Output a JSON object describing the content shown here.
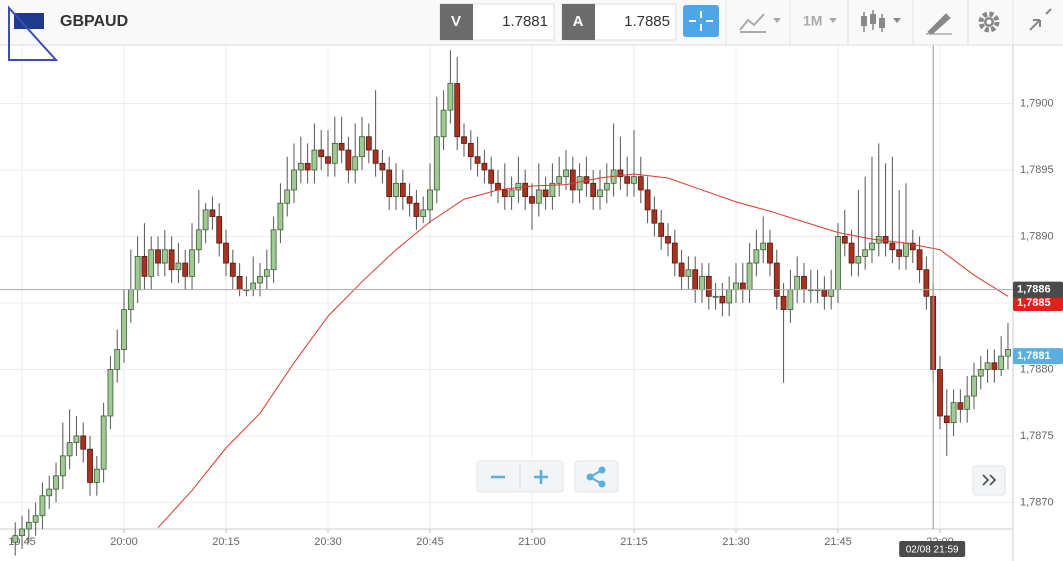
{
  "toolbar": {
    "symbol": "GBPAUD",
    "bid_label": "V",
    "bid": "1.7881",
    "ask_label": "A",
    "ask": "1.7885",
    "timeframe": "1M"
  },
  "chart_data": {
    "type": "candlestick",
    "xlim": [
      1181.76,
      1330.74
    ],
    "ylim": [
      1.7868,
      1.79044
    ],
    "xticks": [
      {
        "value": 1185,
        "label": "19:45"
      },
      {
        "value": 1200,
        "label": "20:00"
      },
      {
        "value": 1215,
        "label": "20:15"
      },
      {
        "value": 1230,
        "label": "20:30"
      },
      {
        "value": 1245,
        "label": "20:45"
      },
      {
        "value": 1260,
        "label": "21:00"
      },
      {
        "value": 1275,
        "label": "21:15"
      },
      {
        "value": 1290,
        "label": "21:30"
      },
      {
        "value": 1305,
        "label": "21:45"
      },
      {
        "value": 1320,
        "label": "22:00"
      }
    ],
    "yticks": [
      {
        "value": 1.787,
        "label": "1,7870"
      },
      {
        "value": 1.7875,
        "label": "1,7875"
      },
      {
        "value": 1.788,
        "label": "1,7880"
      },
      {
        "value": 1.7885,
        "label": "1,7885"
      },
      {
        "value": 1.789,
        "label": "1,7890"
      },
      {
        "value": 1.7895,
        "label": "1,7895"
      },
      {
        "value": 1.79,
        "label": "1,7900"
      }
    ],
    "grid": true,
    "up_color": "#9fca94",
    "up_stroke": "#3e5a37",
    "down_color": "#a8321f",
    "down_stroke": "#4f1a10",
    "wick_color": "#555555",
    "x": [
      1184,
      1185,
      1186,
      1187,
      1188,
      1189,
      1190,
      1191,
      1192,
      1193,
      1194,
      1195,
      1196,
      1197,
      1198,
      1199,
      1200,
      1201,
      1202,
      1203,
      1204,
      1205,
      1206,
      1207,
      1208,
      1209,
      1210,
      1211,
      1212,
      1213,
      1214,
      1215,
      1216,
      1217,
      1218,
      1219,
      1220,
      1221,
      1222,
      1223,
      1224,
      1225,
      1226,
      1227,
      1228,
      1229,
      1230,
      1231,
      1232,
      1233,
      1234,
      1235,
      1236,
      1237,
      1238,
      1239,
      1240,
      1241,
      1242,
      1243,
      1244,
      1245,
      1246,
      1247,
      1248,
      1249,
      1250,
      1251,
      1252,
      1253,
      1254,
      1255,
      1256,
      1257,
      1258,
      1259,
      1260,
      1261,
      1262,
      1263,
      1264,
      1265,
      1266,
      1267,
      1268,
      1269,
      1270,
      1271,
      1272,
      1273,
      1274,
      1275,
      1276,
      1277,
      1278,
      1279,
      1280,
      1281,
      1282,
      1283,
      1284,
      1285,
      1286,
      1287,
      1288,
      1289,
      1290,
      1291,
      1292,
      1293,
      1294,
      1295,
      1296,
      1297,
      1298,
      1299,
      1300,
      1301,
      1302,
      1303,
      1304,
      1305,
      1306,
      1307,
      1308,
      1309,
      1310,
      1311,
      1312,
      1313,
      1314,
      1315,
      1316,
      1317,
      1318,
      1319,
      1320,
      1321,
      1322,
      1323,
      1324,
      1325,
      1326,
      1327,
      1328,
      1329,
      1330
    ],
    "open": [
      1.7867,
      1.78675,
      1.7868,
      1.78685,
      1.7869,
      1.78705,
      1.7871,
      1.7872,
      1.78735,
      1.78745,
      1.7875,
      1.7874,
      1.78715,
      1.78725,
      1.78765,
      1.788,
      1.78815,
      1.78845,
      1.7886,
      1.78885,
      1.7887,
      1.7889,
      1.7888,
      1.7889,
      1.78875,
      1.7888,
      1.7887,
      1.7889,
      1.78905,
      1.7892,
      1.78915,
      1.78895,
      1.7888,
      1.7887,
      1.7886,
      1.7886,
      1.78865,
      1.7887,
      1.78875,
      1.78905,
      1.78925,
      1.78935,
      1.7895,
      1.78955,
      1.7895,
      1.78965,
      1.7896,
      1.78955,
      1.7897,
      1.78965,
      1.7895,
      1.7896,
      1.78975,
      1.78965,
      1.78955,
      1.7895,
      1.7893,
      1.7894,
      1.7893,
      1.78925,
      1.78915,
      1.7892,
      1.78935,
      1.78975,
      1.78995,
      1.79015,
      1.78975,
      1.7897,
      1.7896,
      1.78955,
      1.7895,
      1.7894,
      1.78935,
      1.7893,
      1.78935,
      1.7894,
      1.7893,
      1.78925,
      1.78935,
      1.7893,
      1.7894,
      1.78945,
      1.7895,
      1.78935,
      1.78945,
      1.7894,
      1.7893,
      1.78935,
      1.7894,
      1.7895,
      1.78945,
      1.7894,
      1.78945,
      1.78935,
      1.7892,
      1.7891,
      1.789,
      1.78895,
      1.7888,
      1.7887,
      1.78875,
      1.7886,
      1.7887,
      1.78855,
      1.78855,
      1.7885,
      1.7886,
      1.78865,
      1.7886,
      1.7888,
      1.7889,
      1.78895,
      1.7888,
      1.78855,
      1.78845,
      1.7886,
      1.7887,
      1.7886,
      1.7886,
      1.7886,
      1.78855,
      1.7886,
      1.789,
      1.78895,
      1.7888,
      1.78885,
      1.7889,
      1.78895,
      1.789,
      1.78895,
      1.7889,
      1.78885,
      1.78895,
      1.7889,
      1.78875,
      1.78855,
      1.788,
      1.78765,
      1.7876,
      1.78775,
      1.7877,
      1.7878,
      1.78795,
      1.788,
      1.78805,
      1.788,
      1.7881
    ],
    "high": [
      1.78685,
      1.7869,
      1.78695,
      1.787,
      1.78715,
      1.7872,
      1.7873,
      1.7876,
      1.7877,
      1.78765,
      1.7876,
      1.7875,
      1.78735,
      1.78775,
      1.7881,
      1.7883,
      1.7886,
      1.7889,
      1.789,
      1.7891,
      1.789,
      1.789,
      1.78905,
      1.789,
      1.78895,
      1.7889,
      1.7891,
      1.78935,
      1.78925,
      1.7893,
      1.78925,
      1.78905,
      1.7889,
      1.7888,
      1.7887,
      1.78885,
      1.7888,
      1.7889,
      1.78915,
      1.7894,
      1.7896,
      1.7897,
      1.78975,
      1.7897,
      1.78985,
      1.7898,
      1.7898,
      1.7899,
      1.7899,
      1.78975,
      1.78985,
      1.7899,
      1.78985,
      1.7901,
      1.78965,
      1.7896,
      1.78955,
      1.7895,
      1.7894,
      1.78935,
      1.7893,
      1.78955,
      1.79005,
      1.7901,
      1.7904,
      1.79035,
      1.78985,
      1.7898,
      1.78975,
      1.78965,
      1.7896,
      1.7895,
      1.78955,
      1.78945,
      1.7896,
      1.7895,
      1.7894,
      1.78955,
      1.78945,
      1.78955,
      1.7896,
      1.78965,
      1.7896,
      1.78955,
      1.7896,
      1.7895,
      1.7895,
      1.78955,
      1.78985,
      1.78975,
      1.7896,
      1.7898,
      1.7896,
      1.78945,
      1.7893,
      1.7892,
      1.7891,
      1.78905,
      1.7889,
      1.78885,
      1.78885,
      1.7888,
      1.7888,
      1.78865,
      1.78865,
      1.7887,
      1.7888,
      1.7888,
      1.78895,
      1.78905,
      1.78915,
      1.78905,
      1.7889,
      1.78865,
      1.78875,
      1.78885,
      1.7888,
      1.78875,
      1.78875,
      1.7887,
      1.78875,
      1.7891,
      1.7892,
      1.78905,
      1.78935,
      1.78945,
      1.7896,
      1.7897,
      1.78955,
      1.7896,
      1.78935,
      1.7894,
      1.78905,
      1.789,
      1.78885,
      1.78865,
      1.7881,
      1.78785,
      1.78785,
      1.78785,
      1.78795,
      1.78805,
      1.7881,
      1.78815,
      1.78815,
      1.78825,
      1.78835
    ],
    "low": [
      1.7866,
      1.78665,
      1.7867,
      1.78675,
      1.7868,
      1.78695,
      1.787,
      1.7871,
      1.78725,
      1.78735,
      1.7873,
      1.78705,
      1.78705,
      1.78715,
      1.78755,
      1.7879,
      1.78805,
      1.78835,
      1.7885,
      1.7886,
      1.7886,
      1.7887,
      1.7887,
      1.78865,
      1.78865,
      1.7886,
      1.7886,
      1.7888,
      1.78895,
      1.78905,
      1.78885,
      1.7887,
      1.7886,
      1.78855,
      1.78855,
      1.78855,
      1.78855,
      1.7886,
      1.78865,
      1.78895,
      1.78915,
      1.78925,
      1.7894,
      1.7894,
      1.7894,
      1.7895,
      1.78945,
      1.78945,
      1.78955,
      1.7894,
      1.7894,
      1.7895,
      1.78955,
      1.78945,
      1.7894,
      1.7892,
      1.7892,
      1.7892,
      1.78915,
      1.78905,
      1.7891,
      1.7891,
      1.78925,
      1.78965,
      1.78985,
      1.78965,
      1.7896,
      1.7895,
      1.78945,
      1.7894,
      1.7893,
      1.78925,
      1.7892,
      1.7892,
      1.78925,
      1.7892,
      1.78905,
      1.78915,
      1.7892,
      1.7892,
      1.7893,
      1.78935,
      1.78925,
      1.78925,
      1.7893,
      1.7892,
      1.7892,
      1.78925,
      1.7893,
      1.78935,
      1.7893,
      1.7893,
      1.78925,
      1.7891,
      1.789,
      1.7889,
      1.78885,
      1.7887,
      1.7886,
      1.7886,
      1.7885,
      1.7885,
      1.78845,
      1.78845,
      1.7884,
      1.7884,
      1.7885,
      1.7885,
      1.7885,
      1.7887,
      1.7888,
      1.7887,
      1.78845,
      1.7879,
      1.78835,
      1.7885,
      1.7885,
      1.7885,
      1.7885,
      1.78845,
      1.78845,
      1.7885,
      1.78885,
      1.7887,
      1.7887,
      1.78875,
      1.7888,
      1.78885,
      1.78885,
      1.7888,
      1.78875,
      1.78875,
      1.7888,
      1.78865,
      1.78845,
      1.7879,
      1.78755,
      1.78735,
      1.7875,
      1.7876,
      1.7876,
      1.7877,
      1.78785,
      1.7879,
      1.7879,
      1.78795,
      1.788
    ],
    "close": [
      1.78675,
      1.7868,
      1.78685,
      1.7869,
      1.78705,
      1.7871,
      1.7872,
      1.78735,
      1.78745,
      1.7875,
      1.7874,
      1.78715,
      1.78725,
      1.78765,
      1.788,
      1.78815,
      1.78845,
      1.7886,
      1.78885,
      1.7887,
      1.7889,
      1.7888,
      1.7889,
      1.78875,
      1.7888,
      1.7887,
      1.7889,
      1.78905,
      1.7892,
      1.78915,
      1.78895,
      1.7888,
      1.7887,
      1.7886,
      1.7886,
      1.78865,
      1.7887,
      1.78875,
      1.78905,
      1.78925,
      1.78935,
      1.7895,
      1.78955,
      1.7895,
      1.78965,
      1.7896,
      1.78955,
      1.7897,
      1.78965,
      1.7895,
      1.7896,
      1.78975,
      1.78965,
      1.78955,
      1.7895,
      1.7893,
      1.7894,
      1.7893,
      1.78925,
      1.78915,
      1.7892,
      1.78935,
      1.78975,
      1.78995,
      1.79015,
      1.78975,
      1.7897,
      1.7896,
      1.78955,
      1.7895,
      1.7894,
      1.78935,
      1.7893,
      1.78935,
      1.7894,
      1.7893,
      1.78925,
      1.78935,
      1.7893,
      1.7894,
      1.78945,
      1.7895,
      1.78935,
      1.78945,
      1.7894,
      1.7893,
      1.78935,
      1.7894,
      1.7895,
      1.78945,
      1.7894,
      1.78945,
      1.78935,
      1.7892,
      1.7891,
      1.789,
      1.78895,
      1.7888,
      1.7887,
      1.78875,
      1.7886,
      1.7887,
      1.78855,
      1.78855,
      1.7885,
      1.7886,
      1.78865,
      1.7886,
      1.7888,
      1.7889,
      1.78895,
      1.7888,
      1.78855,
      1.78845,
      1.7886,
      1.7887,
      1.7886,
      1.7886,
      1.7886,
      1.78855,
      1.7886,
      1.789,
      1.78895,
      1.7888,
      1.78885,
      1.7889,
      1.78895,
      1.789,
      1.78895,
      1.7889,
      1.78885,
      1.78895,
      1.7889,
      1.78875,
      1.78855,
      1.788,
      1.78765,
      1.7876,
      1.78775,
      1.7877,
      1.7878,
      1.78795,
      1.788,
      1.78805,
      1.788,
      1.7881,
      1.78815
    ],
    "ma": {
      "color": "#d93a2b",
      "x": [
        1205,
        1210,
        1215,
        1220,
        1225,
        1230,
        1235,
        1240,
        1245,
        1250,
        1255,
        1260,
        1265,
        1270,
        1275,
        1280,
        1285,
        1290,
        1295,
        1300,
        1305,
        1310,
        1315,
        1320,
        1325,
        1330
      ],
      "values": [
        1.78681,
        1.78709,
        1.78741,
        1.78767,
        1.78805,
        1.7884,
        1.78866,
        1.7889,
        1.78911,
        1.78928,
        1.78935,
        1.78938,
        1.78939,
        1.78944,
        1.78947,
        1.78944,
        1.78935,
        1.78926,
        1.78919,
        1.78911,
        1.78903,
        1.78898,
        1.78895,
        1.7889,
        1.78871,
        1.78855
      ]
    },
    "price_lines": [
      {
        "value": 1.7885,
        "label": "1,7885",
        "color": "#e0201a",
        "show_line": false
      },
      {
        "value": 1.7881,
        "label": "1,7881",
        "color": "#5aaee0",
        "show_line": false
      },
      {
        "value": 1.7886,
        "label": "1,7886",
        "color": "#4a4a4a",
        "show_line": true
      }
    ],
    "crosshair": {
      "x": 1319,
      "label": "02/08 21:59"
    }
  }
}
